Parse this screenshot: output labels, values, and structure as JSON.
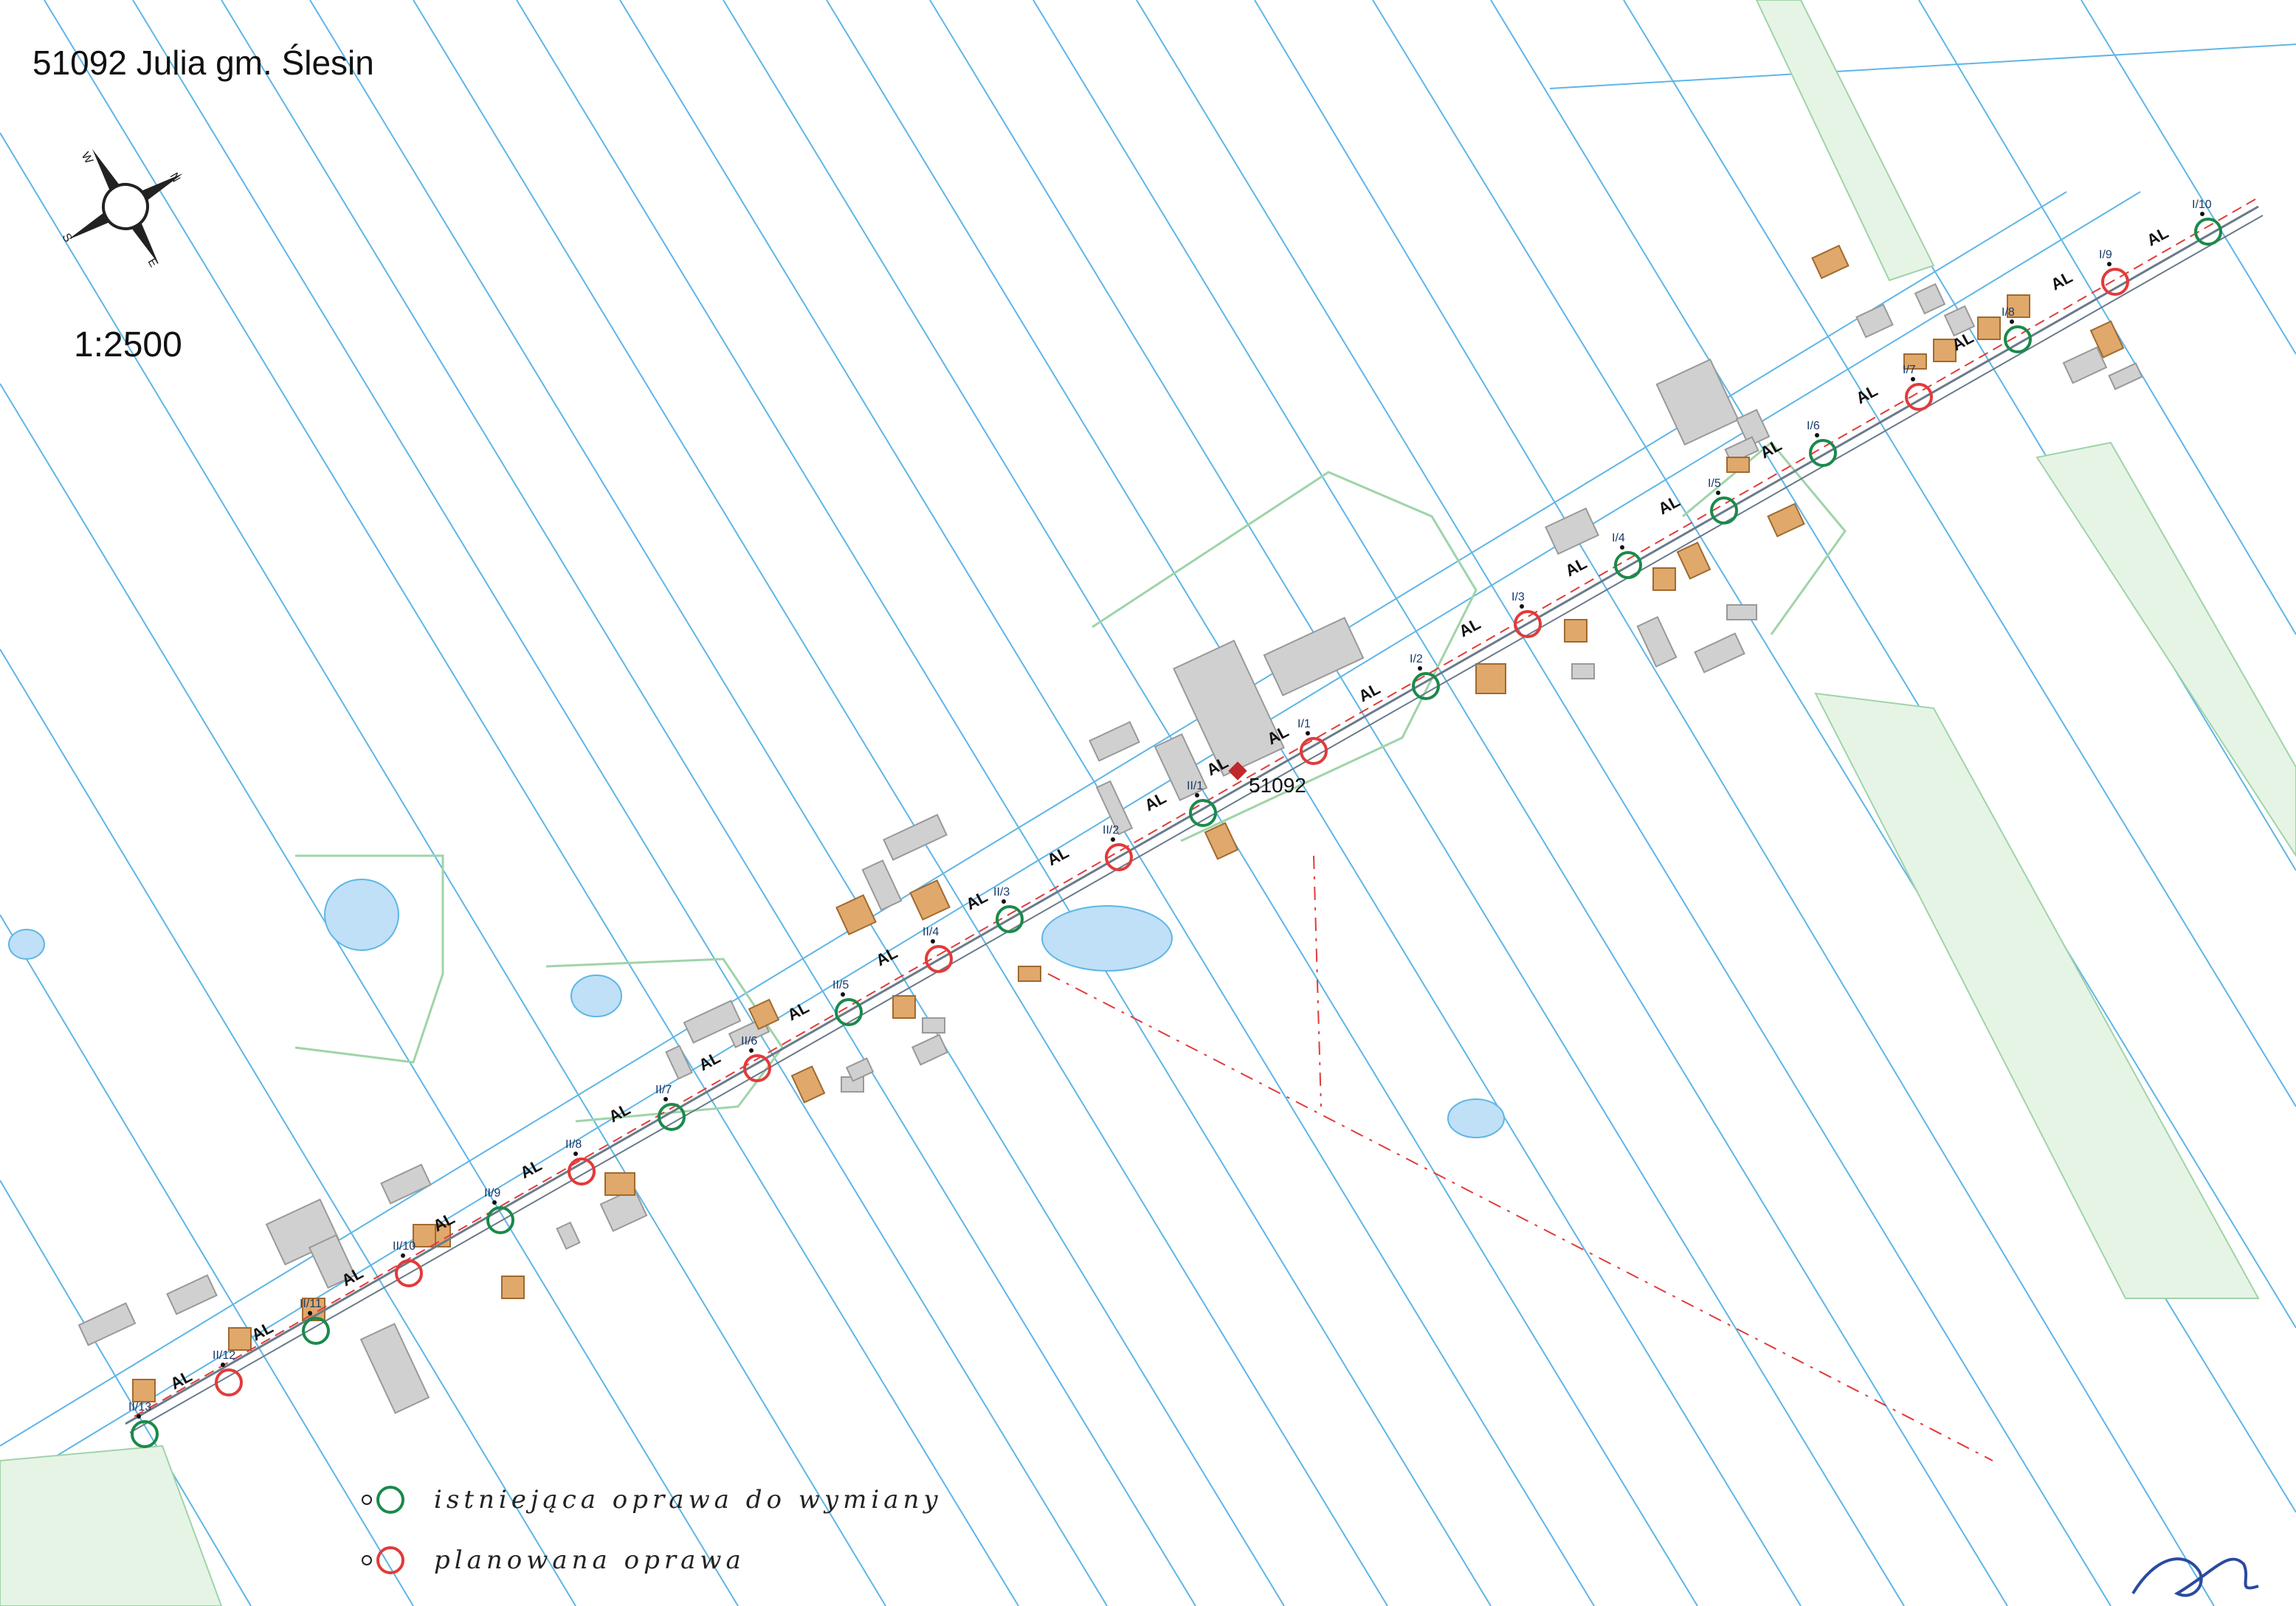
{
  "header": {
    "title": "51092 Julia gm. Ślesin",
    "scale": "1:2500"
  },
  "compass": {
    "n": "N",
    "e": "E",
    "s": "S",
    "w": "W"
  },
  "station": {
    "label": "51092"
  },
  "line_label": "AL",
  "lamps": {
    "line1": [
      "I/1",
      "I/2",
      "I/3",
      "I/4",
      "I/5",
      "I/6",
      "I/7",
      "I/8",
      "I/9",
      "I/10"
    ],
    "line2": [
      "II/1",
      "II/2",
      "II/3",
      "II/4",
      "II/5",
      "II/6",
      "II/7",
      "II/8",
      "II/9",
      "II/10",
      "II/11",
      "II/12",
      "II/13"
    ]
  },
  "legend": {
    "existing": "istniejąca oprawa do wymiany",
    "planned": "planowana oprawa"
  },
  "colors": {
    "existing": "#1a8a4a",
    "planned": "#e23a3a",
    "parcel_line": "#5fb6e6",
    "building_planned": "#e0a86a",
    "building_existing": "#d0d0d0",
    "green_zone": "#9fd4a8"
  }
}
